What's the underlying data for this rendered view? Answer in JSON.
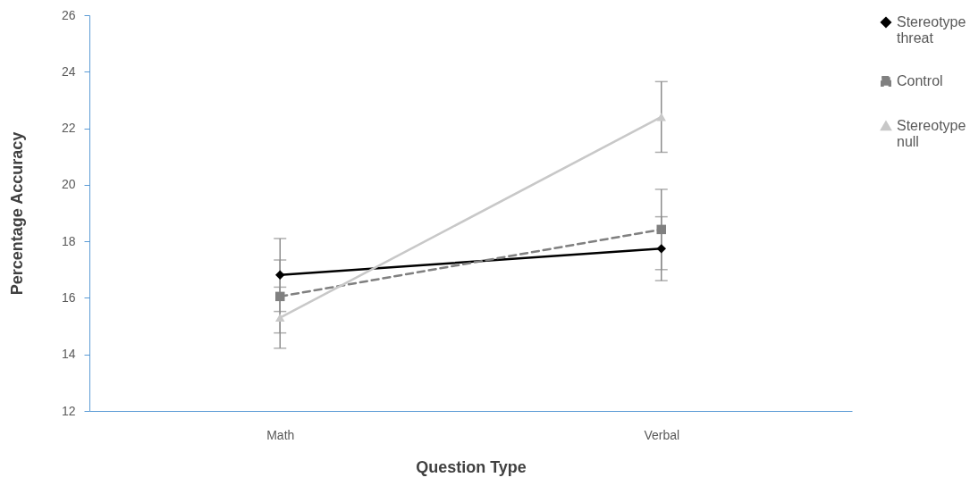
{
  "chart_data": {
    "type": "line",
    "xlabel": "Question Type",
    "ylabel": "Percentage Accuracy",
    "categories": [
      "Math",
      "Verbal"
    ],
    "ylim": [
      12,
      26
    ],
    "yticks": [
      12,
      14,
      16,
      18,
      20,
      22,
      24,
      26
    ],
    "grid": false,
    "legend": "right",
    "series": [
      {
        "name": "Stereotype threat",
        "color": "#000000",
        "values": [
          16.81,
          17.74
        ],
        "errors": [
          1.29,
          1.13
        ],
        "marker": "diamond",
        "line_style": "solid"
      },
      {
        "name": "Control",
        "color": "#808080",
        "values": [
          16.05,
          18.42
        ],
        "errors": [
          1.29,
          1.42
        ],
        "marker": "square",
        "line_style": "dashed"
      },
      {
        "name": "Stereotype null",
        "color": "#c8c8c8",
        "values": [
          15.3,
          22.4
        ],
        "errors": [
          1.08,
          1.25
        ],
        "marker": "triangle",
        "line_style": "solid"
      }
    ]
  }
}
